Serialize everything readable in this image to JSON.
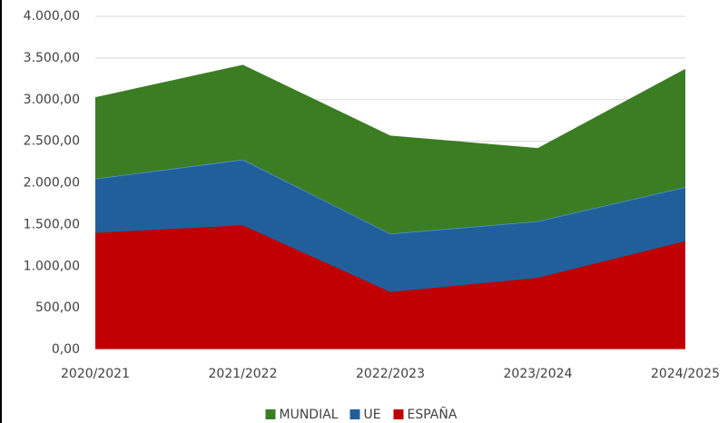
{
  "chart_data": {
    "type": "stacked_area",
    "categories": [
      "2020/2021",
      "2021/2022",
      "2022/2023",
      "2023/2024",
      "2024/2025"
    ],
    "series": [
      {
        "name": "ESPAÑA",
        "color": "#c00000",
        "values": [
          1400,
          1490,
          690,
          860,
          1300
        ]
      },
      {
        "name": "UE",
        "color": "#215f9a",
        "values": [
          650,
          790,
          700,
          680,
          650
        ]
      },
      {
        "name": "MUNDIAL",
        "color": "#3b7d23",
        "values": [
          970,
          1130,
          1170,
          870,
          1410
        ]
      }
    ],
    "ylim": [
      0,
      4000
    ],
    "yticks": [
      {
        "value": 0,
        "label": "0,00"
      },
      {
        "value": 500,
        "label": "500,00"
      },
      {
        "value": 1000,
        "label": "1.000,00"
      },
      {
        "value": 1500,
        "label": "1.500,00"
      },
      {
        "value": 2000,
        "label": "2.000,00"
      },
      {
        "value": 2500,
        "label": "2.500,00"
      },
      {
        "value": 3000,
        "label": "3.000,00"
      },
      {
        "value": 3500,
        "label": "3.500,00"
      },
      {
        "value": 4000,
        "label": "4.000,00"
      }
    ],
    "grid": true,
    "legend": "bottom"
  }
}
